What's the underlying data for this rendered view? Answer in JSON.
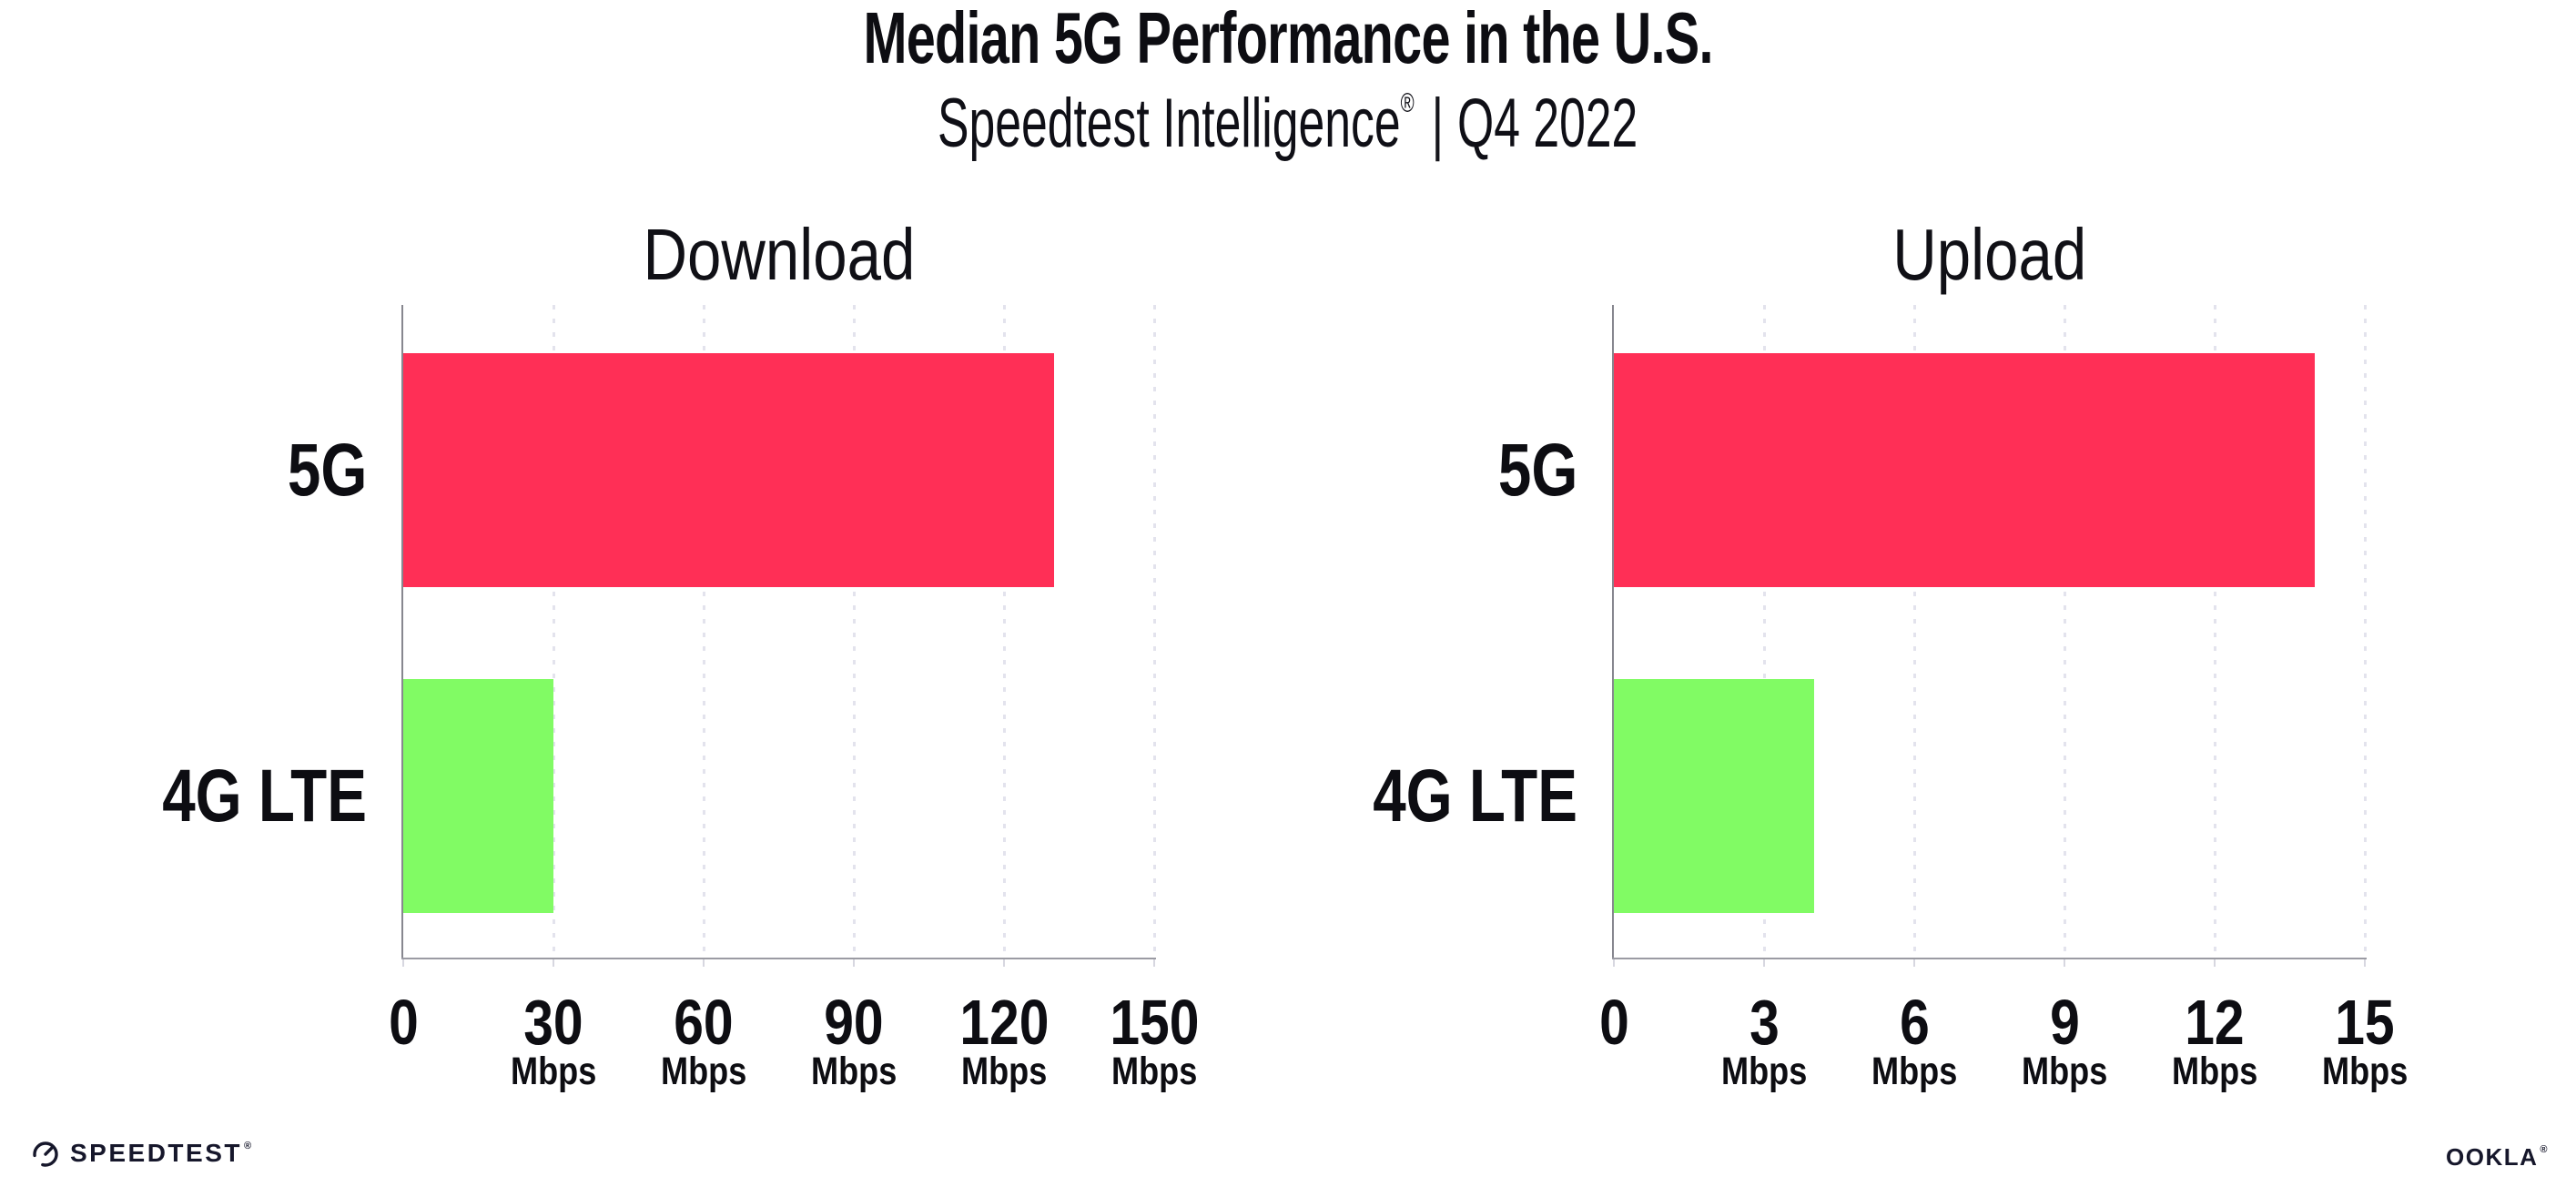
{
  "header": {
    "title": "Median 5G Performance in the U.S.",
    "subtitle_brand": "Speedtest Intelligence",
    "subtitle_reg": "®",
    "subtitle_sep": "|",
    "subtitle_period": "Q4 2022"
  },
  "chart_data": [
    {
      "type": "bar",
      "orientation": "horizontal",
      "title": "Download",
      "categories": [
        "5G",
        "4G LTE"
      ],
      "values": [
        130,
        30
      ],
      "unit": "Mbps",
      "xlim": [
        0,
        150
      ],
      "xticks": [
        0,
        30,
        60,
        90,
        120,
        150
      ],
      "bar_colors": [
        "#FF2F56",
        "#81FB64"
      ],
      "grid": "dotted-vertical",
      "legend": "none"
    },
    {
      "type": "bar",
      "orientation": "horizontal",
      "title": "Upload",
      "categories": [
        "5G",
        "4G LTE"
      ],
      "values": [
        14,
        4
      ],
      "unit": "Mbps",
      "xlim": [
        0,
        15
      ],
      "xticks": [
        0,
        3,
        6,
        9,
        12,
        15
      ],
      "bar_colors": [
        "#FF2F56",
        "#81FB64"
      ],
      "grid": "dotted-vertical",
      "legend": "none"
    }
  ],
  "footer": {
    "speedtest_label": "SPEEDTEST",
    "speedtest_mark": "®",
    "ookla_label": "OOKLA",
    "ookla_mark": "®"
  },
  "colors": {
    "bar_5g": "#FF2F56",
    "bar_4g_lte": "#81FB64",
    "gridline": "#E3E3ED",
    "axis_line": "#9B9BA3",
    "axis_spine": "#87878F",
    "text": "#0D0D12",
    "logo": "#16172B",
    "background": "#FFFFFF"
  }
}
